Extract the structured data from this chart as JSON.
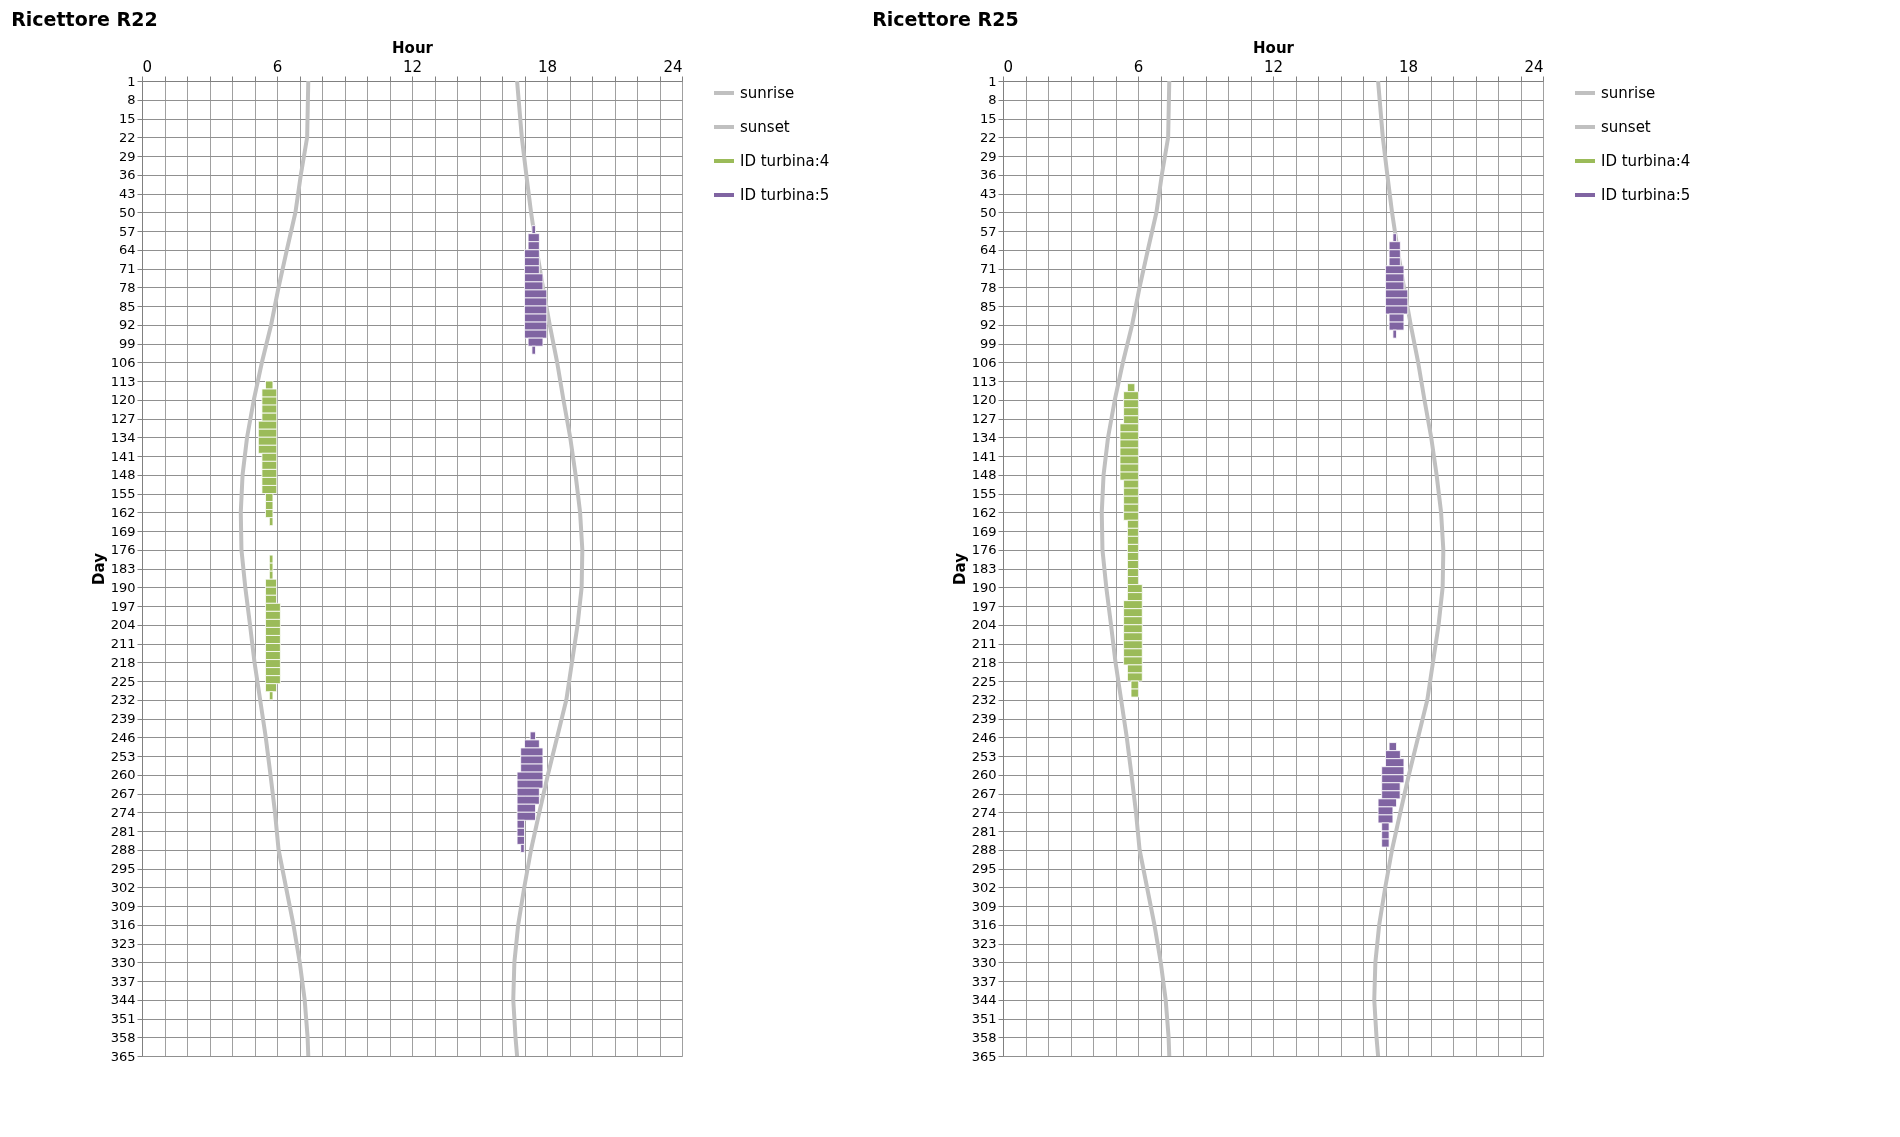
{
  "chart_data": [
    {
      "type": "line",
      "title": "Ricettore R22",
      "xlabel": "Hour",
      "ylabel": "Day",
      "orientation": "horizontal",
      "grid": true,
      "legend": "right",
      "line_style": "solid",
      "xlim": [
        0,
        24
      ],
      "xticks": [
        0,
        {
          "value": 1,
          "label": null
        },
        {
          "value": 2,
          "label": null
        },
        {
          "value": 3,
          "label": null
        },
        {
          "value": 4,
          "label": null
        },
        {
          "value": 5,
          "label": null
        },
        6,
        {
          "value": 7,
          "label": null
        },
        {
          "value": 8,
          "label": null
        },
        {
          "value": 9,
          "label": null
        },
        {
          "value": 10,
          "label": null
        },
        {
          "value": 11,
          "label": null
        },
        12,
        {
          "value": 13,
          "label": null
        },
        {
          "value": 14,
          "label": null
        },
        {
          "value": 15,
          "label": null
        },
        {
          "value": 16,
          "label": null
        },
        {
          "value": 17,
          "label": null
        },
        18,
        {
          "value": 19,
          "label": null
        },
        {
          "value": 20,
          "label": null
        },
        {
          "value": 21,
          "label": null
        },
        {
          "value": 22,
          "label": null
        },
        {
          "value": 23,
          "label": null
        },
        24
      ],
      "ylim": [
        365,
        1
      ],
      "yticks": [
        1,
        8,
        15,
        22,
        29,
        36,
        43,
        50,
        57,
        64,
        71,
        78,
        85,
        92,
        99,
        106,
        113,
        120,
        127,
        134,
        141,
        148,
        155,
        162,
        169,
        176,
        183,
        190,
        197,
        204,
        211,
        218,
        225,
        232,
        239,
        246,
        253,
        260,
        267,
        274,
        281,
        288,
        295,
        302,
        309,
        316,
        323,
        330,
        337,
        344,
        351,
        358,
        365
      ],
      "series": [
        {
          "name": "sunrise",
          "color": "#c0c0c0",
          "x": [
            1,
            22,
            36,
            50,
            64,
            78,
            92,
            106,
            120,
            134,
            148,
            162,
            176,
            190,
            204,
            218,
            232,
            246,
            260,
            274,
            288,
            302,
            316,
            330,
            344,
            358,
            365
          ],
          "values": [
            7.39,
            7.34,
            7.06,
            6.82,
            6.44,
            6.07,
            5.74,
            5.33,
            4.97,
            4.67,
            4.47,
            4.39,
            4.42,
            4.59,
            4.8,
            5.0,
            5.25,
            5.5,
            5.71,
            5.91,
            6.07,
            6.4,
            6.73,
            7.01,
            7.23,
            7.36,
            7.39
          ]
        },
        {
          "name": "sunset",
          "color": "#c0c0c0",
          "x": [
            1,
            22,
            36,
            50,
            64,
            78,
            92,
            106,
            120,
            134,
            148,
            162,
            176,
            190,
            204,
            218,
            232,
            246,
            260,
            274,
            288,
            302,
            316,
            330,
            344,
            358,
            365
          ],
          "values": [
            16.67,
            16.88,
            17.08,
            17.29,
            17.54,
            17.82,
            18.12,
            18.45,
            18.73,
            19.03,
            19.27,
            19.47,
            19.57,
            19.54,
            19.36,
            19.11,
            18.86,
            18.45,
            18.04,
            17.66,
            17.29,
            16.99,
            16.72,
            16.55,
            16.5,
            16.6,
            16.67
          ]
        },
        {
          "name": "ID turbina:4",
          "color": "#9bbb59",
          "type": "bar",
          "x": [
            113,
            116,
            119,
            122,
            125,
            128,
            131,
            134,
            137,
            140,
            143,
            146,
            149,
            152,
            155,
            158,
            161,
            164,
            178,
            181,
            184,
            187,
            190,
            193,
            196,
            199,
            202,
            205,
            208,
            211,
            214,
            217,
            220,
            223,
            226,
            229
          ],
          "base": [
            5.49,
            5.33,
            5.33,
            5.33,
            5.33,
            5.17,
            5.17,
            5.17,
            5.17,
            5.33,
            5.33,
            5.33,
            5.33,
            5.33,
            5.49,
            5.49,
            5.49,
            5.66,
            5.66,
            5.66,
            5.66,
            5.49,
            5.49,
            5.49,
            5.49,
            5.49,
            5.49,
            5.49,
            5.49,
            5.49,
            5.49,
            5.49,
            5.49,
            5.49,
            5.49,
            5.66
          ],
          "values": [
            0.33,
            0.66,
            0.66,
            0.66,
            0.66,
            0.82,
            0.82,
            0.82,
            0.82,
            0.66,
            0.66,
            0.66,
            0.66,
            0.66,
            0.33,
            0.33,
            0.33,
            0.16,
            0.16,
            0.16,
            0.16,
            0.49,
            0.49,
            0.49,
            0.66,
            0.66,
            0.66,
            0.66,
            0.66,
            0.66,
            0.66,
            0.66,
            0.66,
            0.66,
            0.49,
            0.16
          ]
        },
        {
          "name": "ID turbina:5",
          "color": "#8064a2",
          "type": "bar",
          "x": [
            55,
            58,
            61,
            64,
            67,
            70,
            73,
            76,
            79,
            82,
            85,
            88,
            91,
            94,
            97,
            100,
            244,
            247,
            250,
            253,
            256,
            259,
            262,
            265,
            268,
            271,
            274,
            277,
            280,
            283,
            286
          ],
          "base": [
            17.33,
            17.16,
            17.16,
            17.0,
            17.0,
            17.0,
            17.0,
            17.0,
            17.0,
            17.0,
            17.0,
            17.0,
            17.0,
            17.0,
            17.16,
            17.33,
            17.25,
            17.0,
            16.83,
            16.83,
            16.83,
            16.67,
            16.67,
            16.67,
            16.67,
            16.67,
            16.67,
            16.67,
            16.67,
            16.67,
            16.83
          ],
          "values": [
            0.16,
            0.5,
            0.5,
            0.66,
            0.66,
            0.66,
            0.82,
            0.82,
            0.99,
            0.99,
            0.99,
            0.99,
            0.99,
            0.99,
            0.66,
            0.16,
            0.24,
            0.66,
            0.99,
            0.99,
            0.99,
            1.15,
            1.15,
            0.99,
            0.99,
            0.82,
            0.82,
            0.33,
            0.33,
            0.33,
            0.16
          ]
        }
      ]
    },
    {
      "type": "line",
      "title": "Ricettore R25",
      "xlabel": "Hour",
      "ylabel": "Day",
      "orientation": "horizontal",
      "grid": true,
      "legend": "right",
      "line_style": "solid",
      "xlim": [
        0,
        24
      ],
      "xticks": [
        0,
        {
          "value": 1,
          "label": null
        },
        {
          "value": 2,
          "label": null
        },
        {
          "value": 3,
          "label": null
        },
        {
          "value": 4,
          "label": null
        },
        {
          "value": 5,
          "label": null
        },
        6,
        {
          "value": 7,
          "label": null
        },
        {
          "value": 8,
          "label": null
        },
        {
          "value": 9,
          "label": null
        },
        {
          "value": 10,
          "label": null
        },
        {
          "value": 11,
          "label": null
        },
        12,
        {
          "value": 13,
          "label": null
        },
        {
          "value": 14,
          "label": null
        },
        {
          "value": 15,
          "label": null
        },
        {
          "value": 16,
          "label": null
        },
        {
          "value": 17,
          "label": null
        },
        18,
        {
          "value": 19,
          "label": null
        },
        {
          "value": 20,
          "label": null
        },
        {
          "value": 21,
          "label": null
        },
        {
          "value": 22,
          "label": null
        },
        {
          "value": 23,
          "label": null
        },
        24
      ],
      "ylim": [
        365,
        1
      ],
      "yticks": [
        1,
        8,
        15,
        22,
        29,
        36,
        43,
        50,
        57,
        64,
        71,
        78,
        85,
        92,
        99,
        106,
        113,
        120,
        127,
        134,
        141,
        148,
        155,
        162,
        169,
        176,
        183,
        190,
        197,
        204,
        211,
        218,
        225,
        232,
        239,
        246,
        253,
        260,
        267,
        274,
        281,
        288,
        295,
        302,
        309,
        316,
        323,
        330,
        337,
        344,
        351,
        358,
        365
      ],
      "series": [
        {
          "name": "sunrise",
          "color": "#c0c0c0",
          "x": [
            1,
            22,
            36,
            50,
            64,
            78,
            92,
            106,
            120,
            134,
            148,
            162,
            176,
            190,
            204,
            218,
            232,
            246,
            260,
            274,
            288,
            302,
            316,
            330,
            344,
            358,
            365
          ],
          "values": [
            7.39,
            7.34,
            7.06,
            6.82,
            6.44,
            6.07,
            5.74,
            5.33,
            4.97,
            4.67,
            4.47,
            4.39,
            4.42,
            4.59,
            4.8,
            5.0,
            5.25,
            5.5,
            5.71,
            5.91,
            6.07,
            6.4,
            6.73,
            7.01,
            7.23,
            7.36,
            7.39
          ]
        },
        {
          "name": "sunset",
          "color": "#c0c0c0",
          "x": [
            1,
            22,
            36,
            50,
            64,
            78,
            92,
            106,
            120,
            134,
            148,
            162,
            176,
            190,
            204,
            218,
            232,
            246,
            260,
            274,
            288,
            302,
            316,
            330,
            344,
            358,
            365
          ],
          "values": [
            16.67,
            16.88,
            17.08,
            17.29,
            17.54,
            17.82,
            18.12,
            18.45,
            18.73,
            19.03,
            19.27,
            19.47,
            19.57,
            19.54,
            19.36,
            19.11,
            18.86,
            18.45,
            18.04,
            17.66,
            17.29,
            16.99,
            16.72,
            16.55,
            16.5,
            16.6,
            16.67
          ]
        },
        {
          "name": "ID turbina:4",
          "color": "#9bbb59",
          "type": "bar",
          "x": [
            114,
            117,
            120,
            123,
            126,
            129,
            132,
            135,
            138,
            141,
            144,
            147,
            150,
            153,
            156,
            159,
            162,
            165,
            168,
            171,
            174,
            177,
            180,
            183,
            186,
            189,
            192,
            195,
            198,
            201,
            204,
            207,
            210,
            213,
            216,
            219,
            222,
            225,
            228
          ],
          "base": [
            5.53,
            5.36,
            5.36,
            5.36,
            5.36,
            5.2,
            5.2,
            5.2,
            5.2,
            5.2,
            5.2,
            5.2,
            5.36,
            5.36,
            5.36,
            5.36,
            5.36,
            5.53,
            5.53,
            5.53,
            5.53,
            5.53,
            5.53,
            5.53,
            5.53,
            5.53,
            5.53,
            5.36,
            5.36,
            5.36,
            5.36,
            5.36,
            5.36,
            5.36,
            5.36,
            5.53,
            5.53,
            5.69,
            5.69
          ],
          "values": [
            0.33,
            0.66,
            0.66,
            0.66,
            0.66,
            0.82,
            0.82,
            0.82,
            0.82,
            0.82,
            0.82,
            0.82,
            0.66,
            0.66,
            0.66,
            0.66,
            0.66,
            0.49,
            0.49,
            0.49,
            0.49,
            0.49,
            0.49,
            0.49,
            0.49,
            0.66,
            0.66,
            0.83,
            0.83,
            0.83,
            0.83,
            0.83,
            0.83,
            0.83,
            0.83,
            0.66,
            0.66,
            0.33,
            0.33
          ]
        },
        {
          "name": "ID turbina:5",
          "color": "#8064a2",
          "type": "bar",
          "x": [
            58,
            61,
            64,
            67,
            70,
            73,
            76,
            79,
            82,
            85,
            88,
            91,
            94,
            248,
            251,
            254,
            257,
            260,
            263,
            266,
            269,
            272,
            275,
            278,
            281,
            284
          ],
          "base": [
            17.33,
            17.16,
            17.16,
            17.16,
            17.0,
            17.0,
            17.0,
            17.0,
            17.0,
            17.0,
            17.16,
            17.16,
            17.33,
            17.16,
            17.0,
            17.0,
            16.83,
            16.83,
            16.83,
            16.83,
            16.67,
            16.67,
            16.67,
            16.83,
            16.83,
            16.83
          ],
          "values": [
            0.16,
            0.5,
            0.5,
            0.5,
            0.82,
            0.82,
            0.82,
            0.99,
            0.99,
            0.99,
            0.66,
            0.66,
            0.16,
            0.33,
            0.66,
            0.82,
            0.99,
            0.99,
            0.82,
            0.82,
            0.82,
            0.66,
            0.66,
            0.33,
            0.33,
            0.33
          ]
        }
      ]
    }
  ]
}
